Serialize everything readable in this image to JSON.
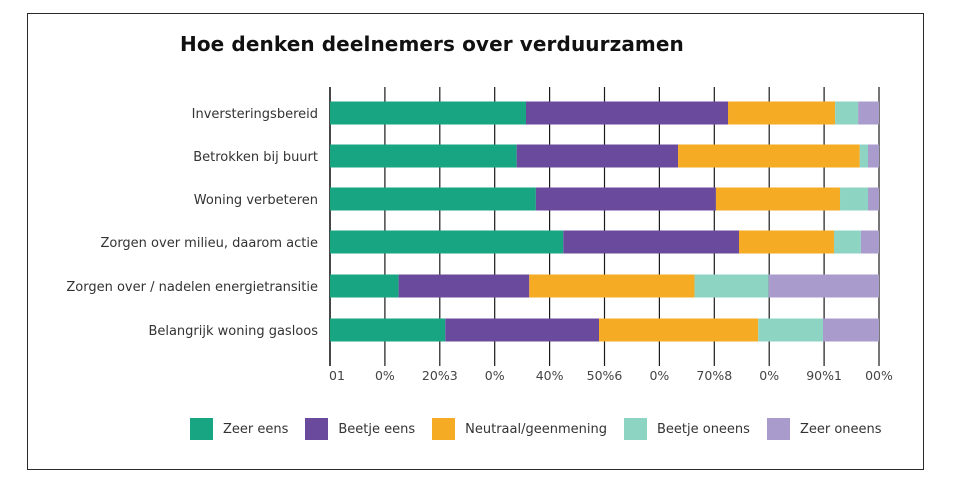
{
  "chart_data": {
    "type": "bar",
    "orientation": "horizontal",
    "stacked": true,
    "title": "Hoe denken deelnemers over verduurzamen",
    "xlabel": "",
    "ylabel": "",
    "xlim": [
      0,
      100
    ],
    "grid": true,
    "legend_position": "bottom",
    "categories": [
      "Inversteringsbereid",
      "Betrokken bij buurt",
      "Woning verbeteren",
      "Zorgen over milieu, daarom actie",
      "Zorgen over / nadelen energietransitie",
      "Belangrijk woning gasloos"
    ],
    "x_tick_values": [
      0,
      10,
      20,
      30,
      40,
      50,
      60,
      70,
      80,
      90,
      100
    ],
    "x_tick_labels": [
      "01",
      "0%",
      "20%3",
      "0%",
      "40%",
      "50%6",
      "0%",
      "70%8",
      "0%",
      "90%1",
      "00%"
    ],
    "series": [
      {
        "name": "Zeer eens",
        "color": "#17A582",
        "values": [
          35.7,
          34.0,
          37.5,
          42.5,
          12.5,
          21.0
        ]
      },
      {
        "name": "Beetje eens",
        "color": "#6A4A9C",
        "values": [
          36.8,
          29.4,
          32.8,
          32.0,
          23.8,
          28.0
        ]
      },
      {
        "name": "Neutraal/geenmening",
        "color": "#F6AB24",
        "values": [
          19.5,
          33.1,
          22.6,
          17.3,
          30.1,
          29.0
        ]
      },
      {
        "name": "Beetje oneens",
        "color": "#8ED4C3",
        "values": [
          4.2,
          1.5,
          5.1,
          4.9,
          13.5,
          11.8
        ]
      },
      {
        "name": "Zeer oneens",
        "color": "#A99BCC",
        "values": [
          3.8,
          2.0,
          2.0,
          3.3,
          20.1,
          10.2
        ]
      }
    ]
  }
}
